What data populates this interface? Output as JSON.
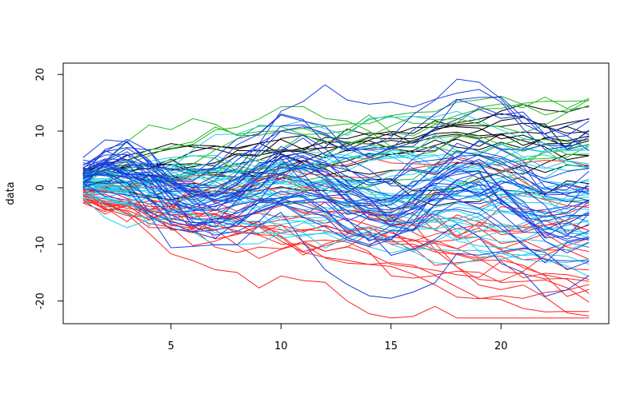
{
  "chart_data": {
    "type": "line",
    "title": "",
    "xlabel": "",
    "ylabel": "data",
    "xlim": [
      0.1,
      24.9
    ],
    "ylim": [
      -24,
      22
    ],
    "xticks": [
      5,
      10,
      15,
      20
    ],
    "yticks": [
      -20,
      -10,
      0,
      10,
      20
    ],
    "x": [
      1,
      2,
      3,
      4,
      5,
      6,
      7,
      8,
      9,
      10,
      11,
      12,
      13,
      14,
      15,
      16,
      17,
      18,
      19,
      20,
      21,
      22,
      23,
      24
    ],
    "grid": false,
    "legend": "none",
    "series_groups": [
      {
        "color": "#000000",
        "count": 12,
        "start": [
          0,
          3.5
        ],
        "drift": 0.33,
        "wiggle": 1.2
      },
      {
        "color": "#22bb22",
        "count": 10,
        "start": [
          0,
          3
        ],
        "drift": 0.45,
        "wiggle": 1.4
      },
      {
        "color": "#ff2222",
        "count": 22,
        "start": [
          -3,
          0
        ],
        "drift": -0.48,
        "wiggle": 1.5
      },
      {
        "color": "#22ccee",
        "count": 30,
        "start": [
          -2,
          3
        ],
        "drift": -0.14,
        "wiggle": 1.4
      },
      {
        "color": "#1a3fe0",
        "count": 30,
        "start": [
          -1,
          3
        ],
        "drift": 0.02,
        "wiggle": 1.6,
        "wave": true
      }
    ]
  }
}
